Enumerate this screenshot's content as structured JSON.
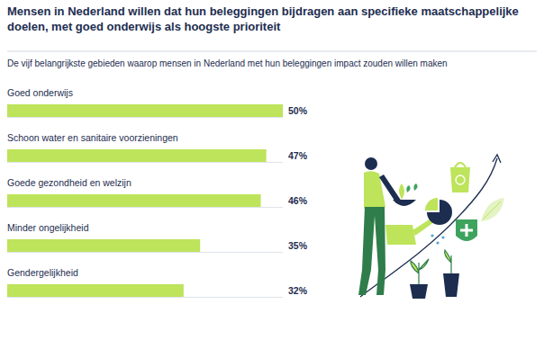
{
  "chart_data": {
    "type": "bar",
    "orientation": "horizontal",
    "title": "Mensen in Nederland willen dat hun beleggingen bijdragen aan specifieke maatschappelijke doelen, met goed onderwijs als hoogste prioriteit",
    "subtitle": "De vijf belangrijkste gebieden waarop mensen in Nederland met hun beleggingen impact zouden willen maken",
    "categories": [
      "Goed onderwijs",
      "Schoon water en sanitaire voorzieningen",
      "Goede gezondheid en welzijn",
      "Minder ongelijkheid",
      "Gendergelijkheid"
    ],
    "values": [
      50,
      47,
      46,
      35,
      32
    ],
    "value_labels": [
      "50%",
      "47%",
      "46%",
      "35%",
      "32%"
    ],
    "data_labels": true,
    "color": "#bde45a",
    "xlim": [
      0,
      50
    ],
    "tick_labels": false,
    "grid": false
  }
}
